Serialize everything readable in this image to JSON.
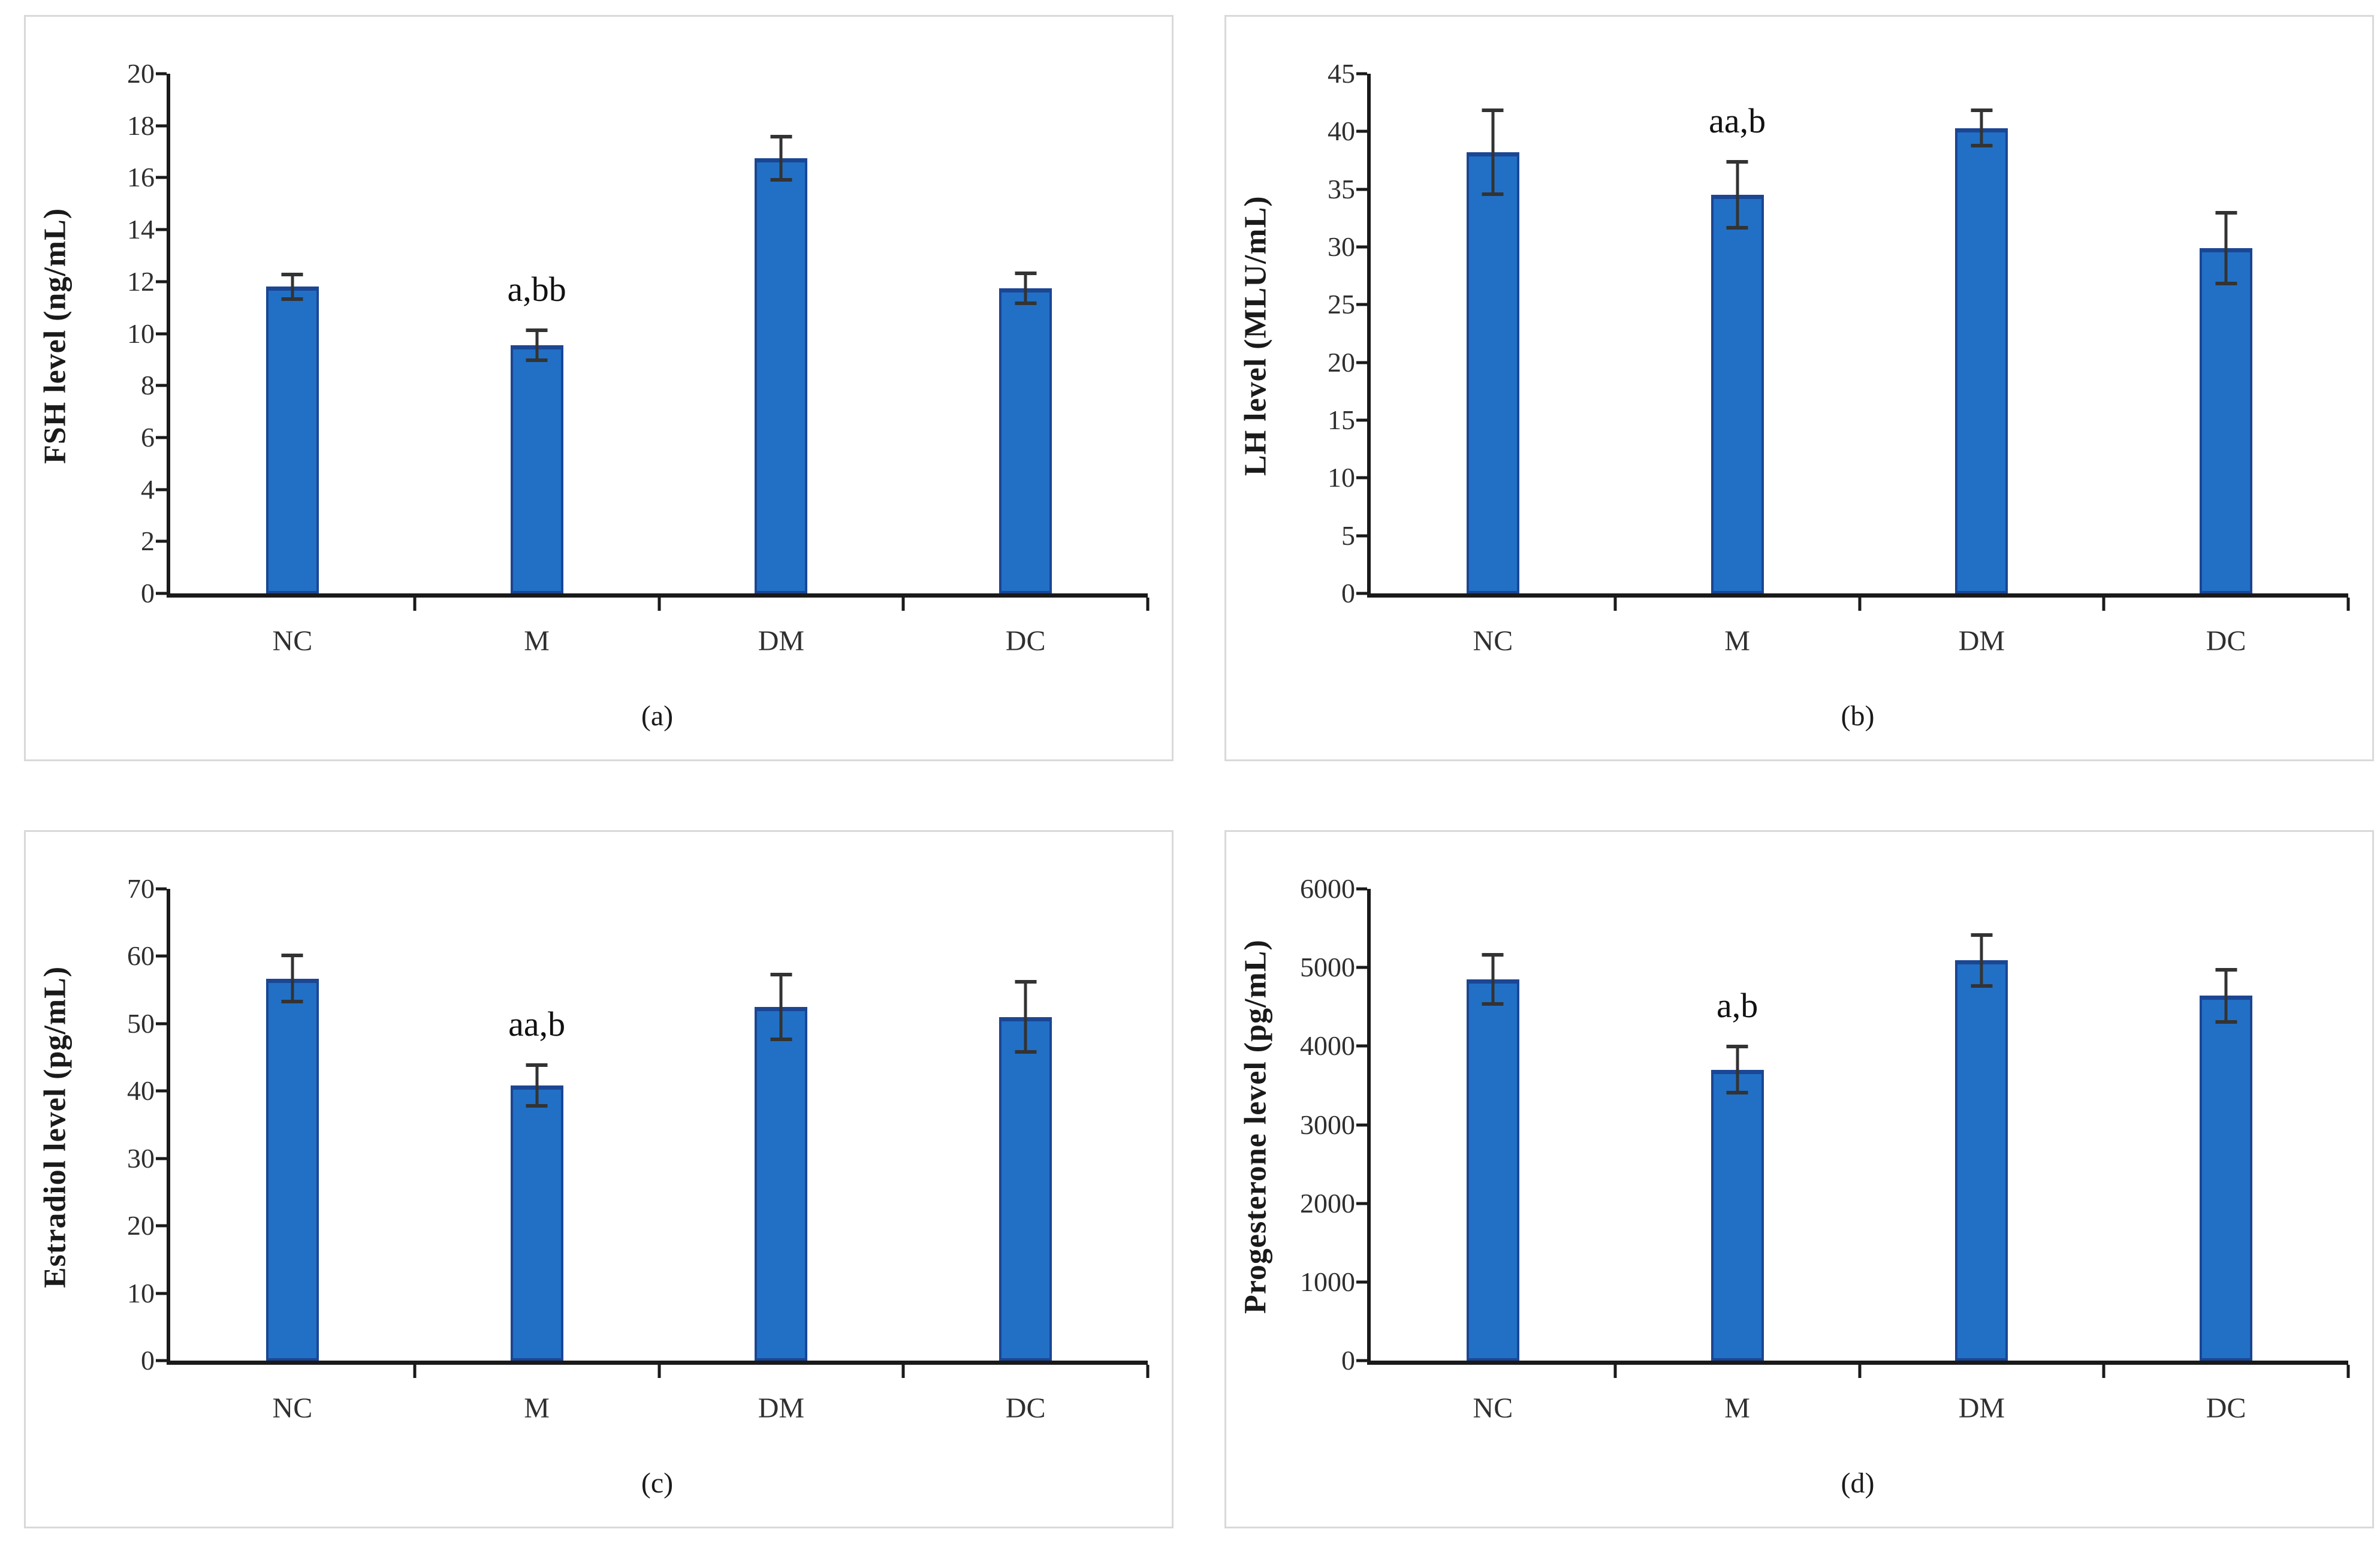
{
  "figure": {
    "background": "#ffffff",
    "panel_count": 4
  },
  "style": {
    "bar_fill": "#2170C6",
    "bar_border": "#1B4693",
    "error_color": "#333333",
    "axis_color": "#1a1a1a",
    "panel_border": "#d9d9d9",
    "text_color": "#2b2b2b"
  },
  "chart_data": [
    {
      "type": "bar",
      "caption": "(a)",
      "ylabel": "FSH level (ng/mL)",
      "xlabel": "",
      "categories": [
        "NC",
        "M",
        "DM",
        "DC"
      ],
      "values": [
        11.8,
        9.55,
        16.75,
        11.75
      ],
      "errors": [
        0.5,
        0.6,
        0.85,
        0.6
      ],
      "annotations": [
        {
          "category": "M",
          "text": "a,bb"
        }
      ],
      "ylim": [
        0,
        20
      ],
      "ytick_step": 2,
      "grid": false,
      "legend": false
    },
    {
      "type": "bar",
      "caption": "(b)",
      "ylabel": "LH level (MLU/mL)",
      "xlabel": "",
      "categories": [
        "NC",
        "M",
        "DM",
        "DC"
      ],
      "values": [
        38.2,
        34.5,
        40.3,
        29.9
      ],
      "errors": [
        3.7,
        2.9,
        1.6,
        3.1
      ],
      "annotations": [
        {
          "category": "M",
          "text": "aa,b"
        }
      ],
      "ylim": [
        0,
        45
      ],
      "ytick_step": 5,
      "grid": false,
      "legend": false
    },
    {
      "type": "bar",
      "caption": "(c)",
      "ylabel": "Estradiol level (pg/mL)",
      "xlabel": "",
      "categories": [
        "NC",
        "M",
        "DM",
        "DC"
      ],
      "values": [
        56.7,
        40.8,
        52.5,
        51.0
      ],
      "errors": [
        3.5,
        3.1,
        4.9,
        5.3
      ],
      "annotations": [
        {
          "category": "M",
          "text": "aa,b"
        }
      ],
      "ylim": [
        0,
        70
      ],
      "ytick_step": 10,
      "grid": false,
      "legend": false
    },
    {
      "type": "bar",
      "caption": "(d)",
      "ylabel": "Progesterone level (pg/mL)",
      "xlabel": "",
      "categories": [
        "NC",
        "M",
        "DM",
        "DC"
      ],
      "values": [
        4850,
        3700,
        5090,
        4640
      ],
      "errors": [
        320,
        300,
        330,
        340
      ],
      "annotations": [
        {
          "category": "M",
          "text": "a,b"
        }
      ],
      "ylim": [
        0,
        6000
      ],
      "ytick_step": 1000,
      "grid": false,
      "legend": false
    }
  ]
}
